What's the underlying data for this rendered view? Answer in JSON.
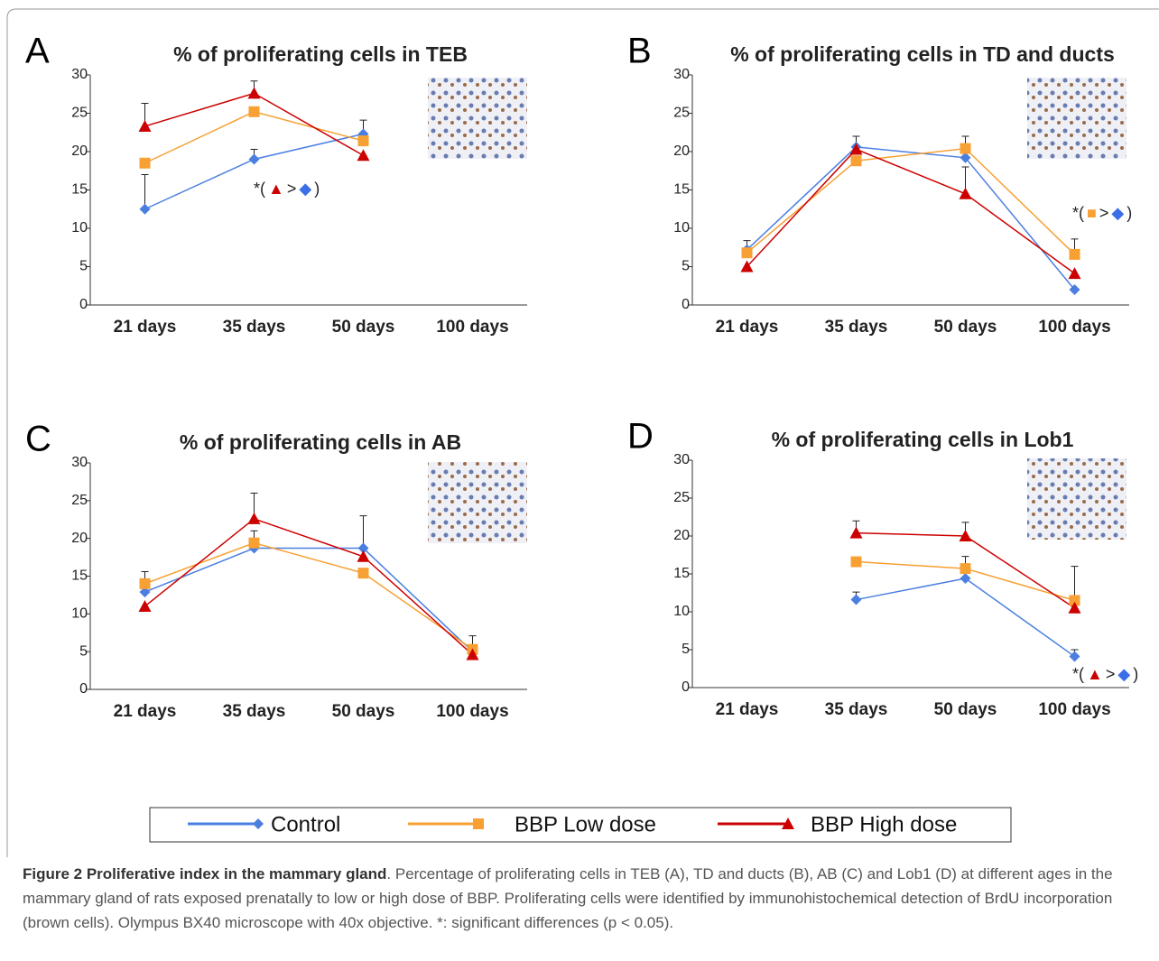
{
  "chart_data": [
    {
      "type": "line",
      "panel": "A",
      "title": "% of proliferating cells in TEB",
      "categories": [
        "21 days",
        "35 days",
        "50 days",
        "100 days"
      ],
      "series": [
        {
          "name": "Control",
          "color": "#4a7fe0",
          "marker": "diamond",
          "values": [
            12.5,
            19,
            22.3,
            null
          ],
          "errors": [
            4.5,
            1.3,
            1.8,
            null
          ]
        },
        {
          "name": "BBP Low dose",
          "color": "#f7a033",
          "marker": "square",
          "values": [
            18.5,
            25.2,
            21.4,
            null
          ],
          "errors": [
            null,
            null,
            null,
            null
          ]
        },
        {
          "name": "BBP High dose",
          "color": "#cc0000",
          "marker": "triangle",
          "values": [
            23.3,
            27.6,
            19.5,
            null
          ],
          "errors": [
            3,
            1.6,
            null,
            null
          ]
        }
      ],
      "ylim": [
        0,
        30
      ],
      "yticks": [
        0,
        5,
        10,
        15,
        20,
        25,
        30
      ],
      "annotation": [
        "*(",
        "▲",
        ">",
        "◆",
        ")"
      ]
    },
    {
      "type": "line",
      "panel": "B",
      "title": "% of proliferating cells in TD and ducts",
      "categories": [
        "21 days",
        "35 days",
        "50 days",
        "100 days"
      ],
      "series": [
        {
          "name": "Control",
          "color": "#4a7fe0",
          "marker": "diamond",
          "values": [
            7.2,
            20.6,
            19.2,
            2
          ],
          "errors": [
            1.2,
            1.4,
            null,
            null
          ]
        },
        {
          "name": "BBP Low dose",
          "color": "#f7a033",
          "marker": "square",
          "values": [
            6.8,
            18.8,
            20.4,
            6.6
          ],
          "errors": [
            null,
            null,
            1.6,
            2
          ]
        },
        {
          "name": "BBP High dose",
          "color": "#cc0000",
          "marker": "triangle",
          "values": [
            5,
            20.3,
            14.5,
            4.1
          ],
          "errors": [
            null,
            null,
            3.5,
            null
          ]
        }
      ],
      "ylim": [
        0,
        30
      ],
      "yticks": [
        0,
        5,
        10,
        15,
        20,
        25,
        30
      ],
      "annotation": [
        "*(",
        "■",
        ">",
        "◆",
        ")"
      ]
    },
    {
      "type": "line",
      "panel": "C",
      "title": "% of proliferating cells in AB",
      "categories": [
        "21 days",
        "35 days",
        "50 days",
        "100 days"
      ],
      "series": [
        {
          "name": "Control",
          "color": "#4a7fe0",
          "marker": "diamond",
          "values": [
            12.9,
            18.7,
            18.7,
            5
          ],
          "errors": [
            null,
            null,
            4.3,
            null
          ]
        },
        {
          "name": "BBP Low dose",
          "color": "#f7a033",
          "marker": "square",
          "values": [
            14,
            19.4,
            15.4,
            5.3
          ],
          "errors": [
            1.6,
            1.6,
            null,
            1.8
          ]
        },
        {
          "name": "BBP High dose",
          "color": "#cc0000",
          "marker": "triangle",
          "values": [
            11,
            22.6,
            17.6,
            4.6
          ],
          "errors": [
            null,
            3.4,
            null,
            null
          ]
        }
      ],
      "ylim": [
        0,
        30
      ],
      "yticks": [
        0,
        5,
        10,
        15,
        20,
        25,
        30
      ]
    },
    {
      "type": "line",
      "panel": "D",
      "title": "% of proliferating cells in Lob1",
      "categories": [
        "21 days",
        "35 days",
        "50 days",
        "100 days"
      ],
      "series": [
        {
          "name": "Control",
          "color": "#4a7fe0",
          "marker": "diamond",
          "values": [
            null,
            11.6,
            14.4,
            4.1
          ],
          "errors": [
            null,
            1,
            null,
            0.9
          ]
        },
        {
          "name": "BBP Low dose",
          "color": "#f7a033",
          "marker": "square",
          "values": [
            null,
            16.6,
            15.7,
            11.5
          ],
          "errors": [
            null,
            null,
            1.6,
            4.5
          ]
        },
        {
          "name": "BBP High dose",
          "color": "#cc0000",
          "marker": "triangle",
          "values": [
            null,
            20.4,
            20,
            10.5
          ],
          "errors": [
            null,
            1.6,
            1.8,
            null
          ]
        }
      ],
      "ylim": [
        0,
        30
      ],
      "yticks": [
        0,
        5,
        10,
        15,
        20,
        25,
        30
      ],
      "annotation": [
        "*(",
        "▲",
        ">",
        "◆",
        ")"
      ]
    }
  ],
  "caption": {
    "label": "Figure 2 Proliferative index in the mammary gland",
    "text": ". Percentage of proliferating cells in TEB (A), TD and ducts (B), AB (C) and Lob1 (D) at different ages in the mammary gland of rats exposed prenatally to low or high dose of BBP. Proliferating cells were identified by immunohistochemical detection of BrdU incorporation (brown cells). Olympus BX40 microscope with 40x objective. *: significant differences (p < 0.05)."
  }
}
